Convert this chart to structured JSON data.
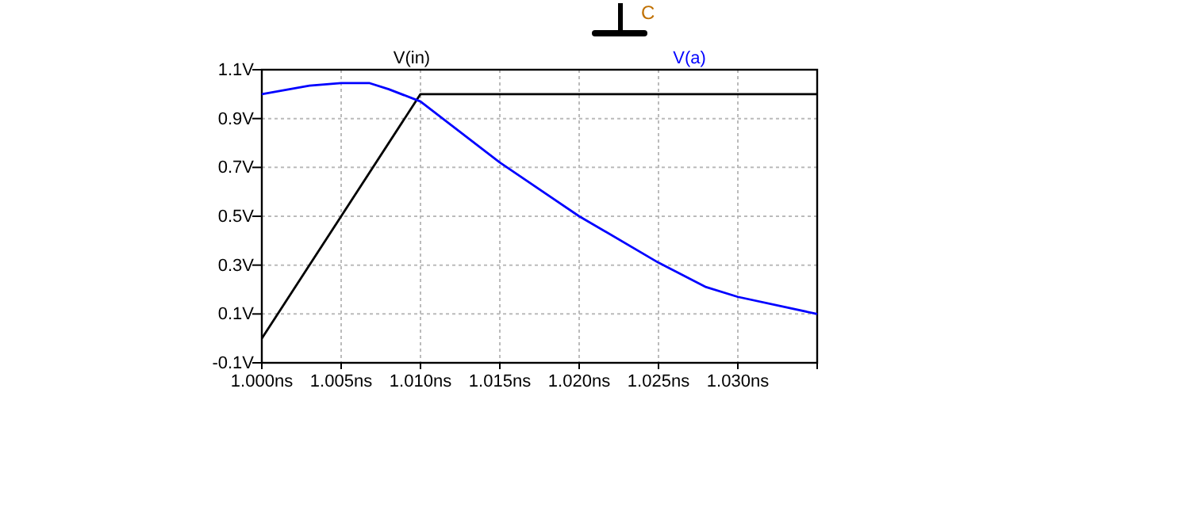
{
  "chart_data": {
    "type": "line",
    "x": [
      1.0,
      1.01,
      1.035
    ],
    "series": [
      {
        "name": "V(in)",
        "color": "#000000",
        "values": [
          0,
          1.0,
          1.0
        ]
      },
      {
        "name": "V(a)",
        "color": "#0000ff",
        "x": [
          1.0,
          1.003,
          1.005,
          1.0068,
          1.008,
          1.01,
          1.015,
          1.02,
          1.025,
          1.028,
          1.03,
          1.035
        ],
        "values": [
          1.0,
          1.035,
          1.045,
          1.045,
          1.02,
          0.97,
          0.72,
          0.5,
          0.31,
          0.21,
          0.17,
          0.1
        ]
      }
    ],
    "xlim": [
      1.0,
      1.035
    ],
    "xticks": [
      {
        "value": 1.0,
        "label": "1.000ns"
      },
      {
        "value": 1.005,
        "label": "1.005ns"
      },
      {
        "value": 1.01,
        "label": "1.010ns"
      },
      {
        "value": 1.015,
        "label": "1.015ns"
      },
      {
        "value": 1.02,
        "label": "1.020ns"
      },
      {
        "value": 1.025,
        "label": "1.025ns"
      },
      {
        "value": 1.03,
        "label": "1.030ns"
      }
    ],
    "ylim": [
      -0.1,
      1.1
    ],
    "yticks": [
      {
        "value": -0.1,
        "label": "-0.1V"
      },
      {
        "value": 0.1,
        "label": "0.1V"
      },
      {
        "value": 0.3,
        "label": "0.3V"
      },
      {
        "value": 0.5,
        "label": "0.5V"
      },
      {
        "value": 0.7,
        "label": "0.7V"
      },
      {
        "value": 0.9,
        "label": "0.9V"
      },
      {
        "value": 1.1,
        "label": "1.1V"
      }
    ],
    "grid": true,
    "legend": "top",
    "line_style": "solid",
    "annotations": [
      "C"
    ]
  }
}
